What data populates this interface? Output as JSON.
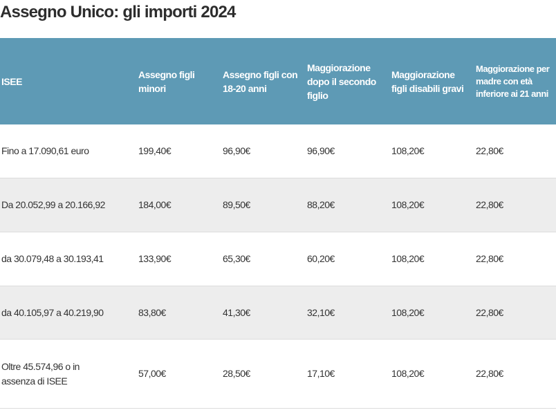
{
  "title": "Assegno Unico: gli importi 2024",
  "table": {
    "headers": [
      "ISEE",
      "Assegno figli minori",
      "Assegno figli con 18-20 anni",
      "Maggiorazione dopo il secondo figlio",
      "Maggiorazione figli disabili gravi",
      "Maggiorazione per madre con età inferiore ai 21 anni"
    ],
    "rows": [
      [
        "Fino a 17.090,61 euro",
        "199,40€",
        "96,90€",
        "96,90€",
        "108,20€",
        "22,80€"
      ],
      [
        "Da 20.052,99 a 20.166,92",
        "184,00€",
        "89,50€",
        "88,20€",
        "108,20€",
        "22,80€"
      ],
      [
        "da 30.079,48 a 30.193,41",
        "133,90€",
        "65,30€",
        "60,20€",
        "108,20€",
        "22,80€"
      ],
      [
        "da 40.105,97 a 40.219,90",
        "83,80€",
        "41,30€",
        "32,10€",
        "108,20€",
        "22,80€"
      ],
      [
        "Oltre 45.574,96 o in assenza di ISEE",
        "57,00€",
        "28,50€",
        "17,10€",
        "108,20€",
        "22,80€"
      ]
    ]
  },
  "colors": {
    "header_bg": "#5e9ab5",
    "alt_row": "#ededed"
  }
}
